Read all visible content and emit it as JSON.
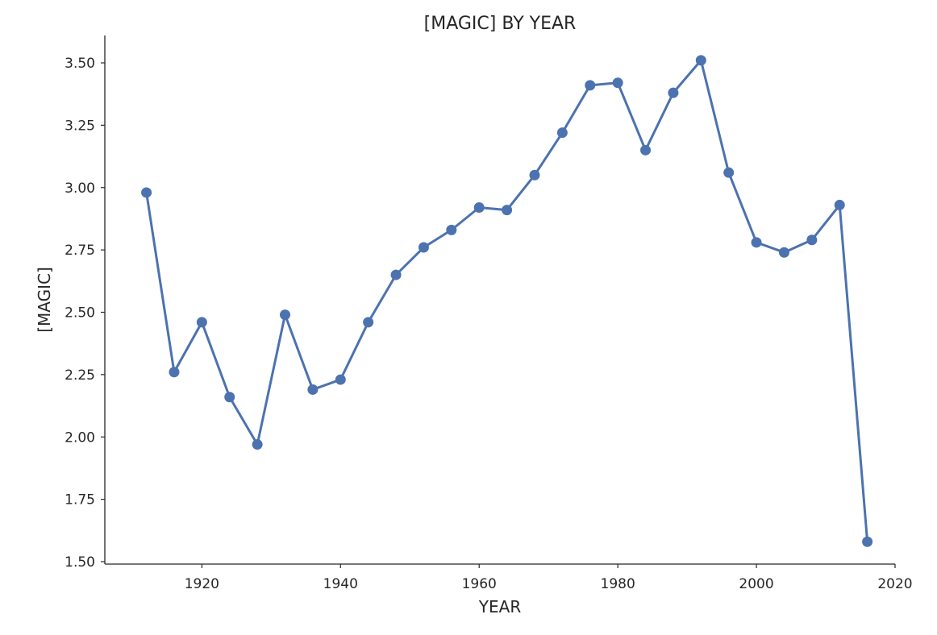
{
  "chart_data": {
    "type": "line",
    "title": "[MAGIC] BY YEAR",
    "xlabel": "YEAR",
    "ylabel": "[MAGIC]",
    "xlim": [
      1906,
      2020
    ],
    "ylim": [
      1.5,
      3.62
    ],
    "x_ticks": [
      "1920",
      "1940",
      "1960",
      "1980",
      "2000",
      "2020"
    ],
    "y_ticks": [
      "1.50",
      "1.75",
      "2.00",
      "2.25",
      "2.50",
      "2.75",
      "3.00",
      "3.25",
      "3.50"
    ],
    "grid": false,
    "color": "#4c72b0",
    "series": [
      {
        "x": [
          1912,
          1916,
          1920,
          1924,
          1928,
          1932,
          1936,
          1940,
          1944,
          1948,
          1952,
          1956,
          1960,
          1964,
          1968,
          1972,
          1976,
          1980,
          1984,
          1988,
          1992,
          1996,
          2000,
          2004,
          2008,
          2012,
          2016
        ],
        "y": [
          2.98,
          2.26,
          2.46,
          2.16,
          1.97,
          2.49,
          2.19,
          2.23,
          2.46,
          2.65,
          2.76,
          2.83,
          2.92,
          2.91,
          3.05,
          3.22,
          3.41,
          3.42,
          3.15,
          3.38,
          3.51,
          3.06,
          2.78,
          2.74,
          2.79,
          2.93,
          1.58
        ]
      }
    ]
  }
}
